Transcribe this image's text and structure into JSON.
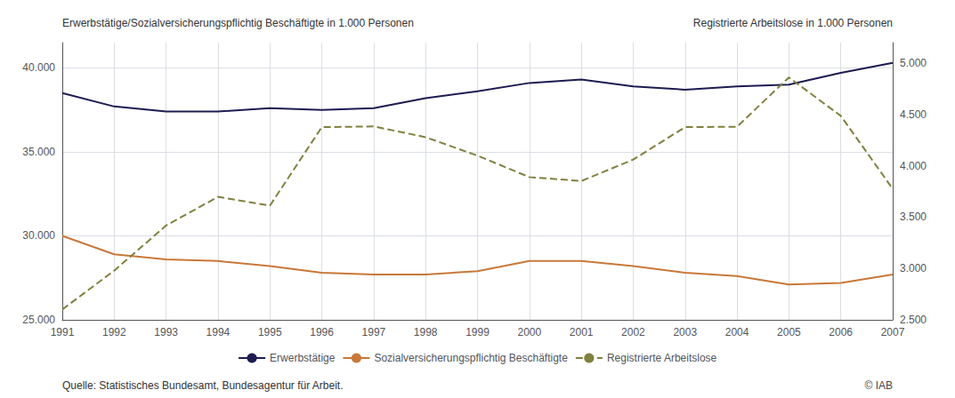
{
  "chart_data": {
    "type": "line",
    "y_label": "Erwerbstätige/Sozialversicherungspflichtig Beschäftigte in 1.000 Personen",
    "y2_label": "Registrierte Arbeitslose in 1.000 Personen",
    "annotations": [
      "Quelle: Statistisches Bundesamt, Bundesagentur für Arbeit.",
      "© IAB"
    ],
    "x": [
      1991,
      1992,
      1993,
      1994,
      1995,
      1996,
      1997,
      1998,
      1999,
      2000,
      2001,
      2002,
      2003,
      2004,
      2005,
      2006,
      2007
    ],
    "xlim": [
      1991,
      2007
    ],
    "xticks": [
      1991,
      1992,
      1993,
      1994,
      1995,
      1996,
      1997,
      1998,
      1999,
      2000,
      2001,
      2002,
      2003,
      2004,
      2005,
      2006,
      2007
    ],
    "ylim": [
      25000,
      41500
    ],
    "yticks": [
      {
        "value": 25000,
        "label": "25.000"
      },
      {
        "value": 30000,
        "label": "30.000"
      },
      {
        "value": 35000,
        "label": "35.000"
      },
      {
        "value": 40000,
        "label": "40.000"
      }
    ],
    "y2lim": [
      2500,
      5200
    ],
    "y2ticks": [
      {
        "value": 2500,
        "label": "2.500"
      },
      {
        "value": 3000,
        "label": "3.000"
      },
      {
        "value": 3500,
        "label": "3.500"
      },
      {
        "value": 4000,
        "label": "4.000"
      },
      {
        "value": 4500,
        "label": "4.500"
      },
      {
        "value": 5000,
        "label": "5.000"
      }
    ],
    "grid": true,
    "legend": "bottom",
    "series": [
      {
        "name": "Erwerbstätige",
        "color": "#1c1c50",
        "line_style": "solid",
        "values": [
          38500,
          37700,
          37400,
          37400,
          37600,
          37500,
          37600,
          38200,
          38600,
          39100,
          39300,
          38900,
          38700,
          38900,
          39000,
          39700,
          40300
        ]
      },
      {
        "name": "Sozialversicherungspflichtig Beschäftigte",
        "color": "#c8783a",
        "line_style": "solid",
        "values": [
          30000,
          28900,
          28600,
          28500,
          28200,
          27800,
          27700,
          27700,
          27900,
          28500,
          28500,
          28200,
          27800,
          27600,
          27100,
          27200,
          27700
        ]
      },
      {
        "name": "Registrierte Arbeitslose",
        "color": "#808040",
        "line_style": "dashed",
        "axis": "y2",
        "values": [
          2601,
          2979,
          3419,
          3698,
          3612,
          4377,
          4384,
          4279,
          4099,
          3890,
          3852,
          4061,
          4377,
          4381,
          4861,
          4487,
          3776
        ]
      }
    ]
  }
}
